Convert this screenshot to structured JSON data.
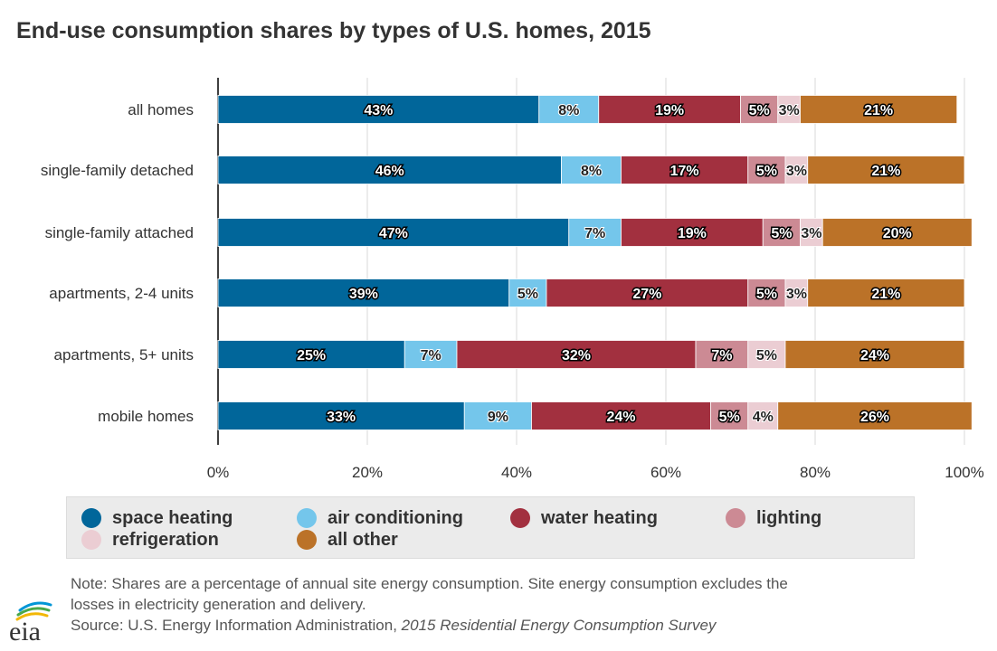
{
  "chart_data": {
    "type": "bar",
    "orientation": "horizontal",
    "stacked": true,
    "title": "End-use consumption shares by types of U.S. homes, 2015",
    "categories": [
      "all homes",
      "single-family detached",
      "single-family attached",
      "apartments, 2-4 units",
      "apartments, 5+ units",
      "mobile homes"
    ],
    "series": [
      {
        "name": "space heating",
        "color": "#01669a",
        "values": [
          43,
          46,
          47,
          39,
          25,
          33
        ]
      },
      {
        "name": "air conditioning",
        "color": "#74c6eb",
        "values": [
          8,
          8,
          7,
          5,
          7,
          9
        ]
      },
      {
        "name": "water heating",
        "color": "#a2303f",
        "values": [
          19,
          17,
          19,
          27,
          32,
          24
        ]
      },
      {
        "name": "lighting",
        "color": "#cc8a94",
        "values": [
          5,
          5,
          5,
          5,
          7,
          5
        ]
      },
      {
        "name": "refrigeration",
        "color": "#ebcdd3",
        "values": [
          3,
          3,
          3,
          3,
          5,
          4
        ]
      },
      {
        "name": "all other",
        "color": "#bb7228",
        "values": [
          21,
          21,
          20,
          21,
          24,
          26
        ]
      }
    ],
    "xlim": [
      0,
      100
    ],
    "xticks": [
      "0%",
      "20%",
      "40%",
      "60%",
      "80%",
      "100%"
    ],
    "grid": true,
    "legend_position": "bottom"
  },
  "notes": {
    "line1": "Note: Shares are a percentage of annual site energy consumption. Site energy consumption excludes the",
    "line2": "losses in electricity generation and delivery.",
    "source_prefix": "Source: U.S. Energy Information Administration, ",
    "source_title": "2015 Residential Energy Consumption Survey"
  },
  "logo": {
    "text": "eia"
  }
}
